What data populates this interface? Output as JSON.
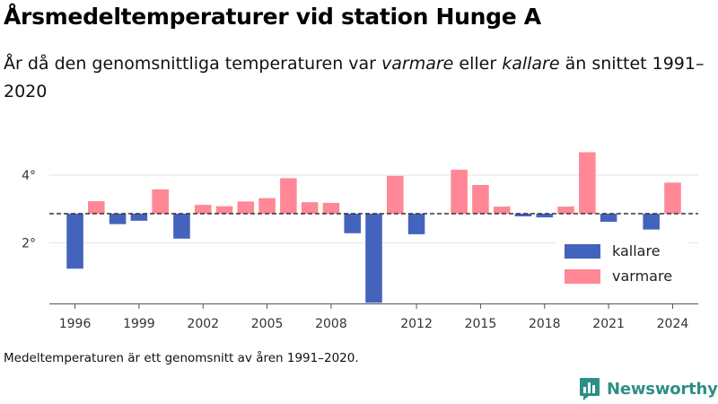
{
  "title": "Årsmedeltemperaturer vid station Hunge A",
  "subtitle": {
    "part1": "År då den genomsnittliga temperaturen var ",
    "warm_word": "varmare",
    "part2": " eller ",
    "cold_word": "kallare",
    "part3": " än snittet 1991–2020"
  },
  "footnote": "Medeltemperaturen är ett genomsnitt av åren 1991–2020.",
  "brand": {
    "name": "Newsworthy",
    "logo_icon": "newsworthy-chart-bubble-icon",
    "color": "#2e8f86"
  },
  "chart_data": {
    "type": "bar",
    "baseline": 2.86,
    "xlim": [
      1994.8,
      2025.2
    ],
    "ylim": [
      0.2,
      5.2
    ],
    "grid": true,
    "legend_position": "right",
    "colors": {
      "kallare": "#4363bd",
      "varmare": "#ff8796",
      "baseline": "#333333"
    },
    "legend": [
      {
        "key": "kallare",
        "label": "kallare"
      },
      {
        "key": "varmare",
        "label": "varmare"
      }
    ],
    "x_ticks": [
      {
        "value": 1996,
        "label": "1996"
      },
      {
        "value": 1999,
        "label": "1999"
      },
      {
        "value": 2002,
        "label": "2002"
      },
      {
        "value": 2005,
        "label": "2005"
      },
      {
        "value": 2008,
        "label": "2008"
      },
      {
        "value": 2012,
        "label": "2012"
      },
      {
        "value": 2015,
        "label": "2015"
      },
      {
        "value": 2018,
        "label": "2018"
      },
      {
        "value": 2021,
        "label": "2021"
      },
      {
        "value": 2024,
        "label": "2024"
      }
    ],
    "y_ticks": [
      {
        "value": 2,
        "label": "2°"
      },
      {
        "value": 4,
        "label": "4°"
      }
    ],
    "years": [
      1996,
      1997,
      1998,
      1999,
      2000,
      2001,
      2002,
      2003,
      2004,
      2005,
      2006,
      2007,
      2008,
      2009,
      2010,
      2011,
      2012,
      2014,
      2015,
      2016,
      2017,
      2018,
      2019,
      2020,
      2021,
      2023,
      2024
    ],
    "values": [
      1.23,
      3.23,
      2.55,
      2.65,
      3.58,
      2.12,
      3.12,
      3.08,
      3.22,
      3.32,
      3.91,
      3.2,
      3.18,
      2.28,
      0.22,
      3.98,
      2.25,
      4.16,
      3.71,
      3.07,
      2.78,
      2.75,
      3.07,
      4.68,
      2.62,
      2.39,
      3.78
    ]
  }
}
